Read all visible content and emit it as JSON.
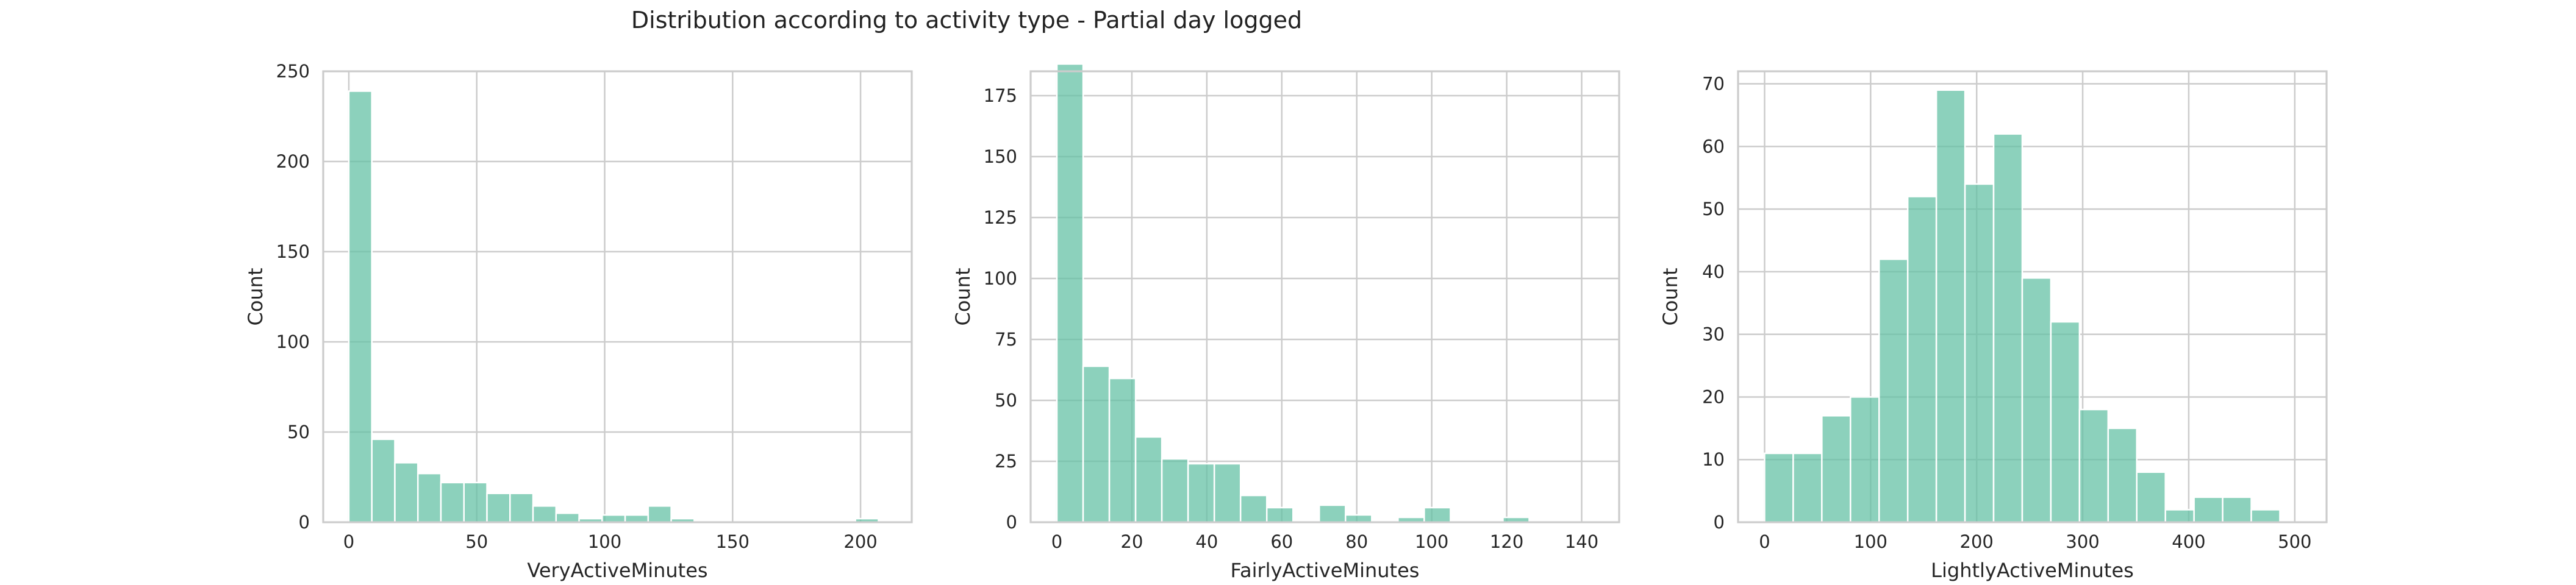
{
  "figure": {
    "title": "Distribution according to activity type - Partial day logged",
    "bar_color": "#66c2a5",
    "bar_opacity": 0.75,
    "grid_color": "#cccccc",
    "background": "#ffffff"
  },
  "chart_data": [
    {
      "type": "bar",
      "kind": "histogram",
      "xlabel": "VeryActiveMinutes",
      "ylabel": "Count",
      "xlim": [
        -10,
        220
      ],
      "ylim": [
        0,
        250
      ],
      "xticks": [
        0,
        50,
        100,
        150,
        200
      ],
      "yticks": [
        0,
        50,
        100,
        150,
        200,
        250
      ],
      "grid": true,
      "bins": [
        {
          "x0": 0,
          "x1": 9,
          "count": 239
        },
        {
          "x0": 9,
          "x1": 18,
          "count": 46
        },
        {
          "x0": 18,
          "x1": 27,
          "count": 33
        },
        {
          "x0": 27,
          "x1": 36,
          "count": 27
        },
        {
          "x0": 36,
          "x1": 45,
          "count": 22
        },
        {
          "x0": 45,
          "x1": 54,
          "count": 22
        },
        {
          "x0": 54,
          "x1": 63,
          "count": 16
        },
        {
          "x0": 63,
          "x1": 72,
          "count": 16
        },
        {
          "x0": 72,
          "x1": 81,
          "count": 9
        },
        {
          "x0": 81,
          "x1": 90,
          "count": 5
        },
        {
          "x0": 90,
          "x1": 99,
          "count": 2
        },
        {
          "x0": 99,
          "x1": 108,
          "count": 4
        },
        {
          "x0": 108,
          "x1": 117,
          "count": 4
        },
        {
          "x0": 117,
          "x1": 126,
          "count": 9
        },
        {
          "x0": 126,
          "x1": 135,
          "count": 2
        },
        {
          "x0": 135,
          "x1": 144,
          "count": 0
        },
        {
          "x0": 144,
          "x1": 153,
          "count": 0
        },
        {
          "x0": 153,
          "x1": 162,
          "count": 0
        },
        {
          "x0": 162,
          "x1": 171,
          "count": 0
        },
        {
          "x0": 171,
          "x1": 180,
          "count": 0
        },
        {
          "x0": 180,
          "x1": 189,
          "count": 0
        },
        {
          "x0": 189,
          "x1": 198,
          "count": 0
        },
        {
          "x0": 198,
          "x1": 207,
          "count": 2
        }
      ]
    },
    {
      "type": "bar",
      "kind": "histogram",
      "xlabel": "FairlyActiveMinutes",
      "ylabel": "Count",
      "xlim": [
        -7,
        150
      ],
      "ylim": [
        0,
        185
      ],
      "xticks": [
        0,
        20,
        40,
        60,
        80,
        100,
        120,
        140
      ],
      "yticks": [
        0,
        25,
        50,
        75,
        100,
        125,
        150,
        175
      ],
      "grid": true,
      "bins": [
        {
          "x0": 0,
          "x1": 7,
          "count": 188
        },
        {
          "x0": 7,
          "x1": 14,
          "count": 64
        },
        {
          "x0": 14,
          "x1": 21,
          "count": 59
        },
        {
          "x0": 21,
          "x1": 28,
          "count": 35
        },
        {
          "x0": 28,
          "x1": 35,
          "count": 26
        },
        {
          "x0": 35,
          "x1": 42,
          "count": 24
        },
        {
          "x0": 42,
          "x1": 49,
          "count": 24
        },
        {
          "x0": 49,
          "x1": 56,
          "count": 11
        },
        {
          "x0": 56,
          "x1": 63,
          "count": 6
        },
        {
          "x0": 63,
          "x1": 70,
          "count": 0
        },
        {
          "x0": 70,
          "x1": 77,
          "count": 7
        },
        {
          "x0": 77,
          "x1": 84,
          "count": 3
        },
        {
          "x0": 84,
          "x1": 91,
          "count": 0
        },
        {
          "x0": 91,
          "x1": 98,
          "count": 2
        },
        {
          "x0": 98,
          "x1": 105,
          "count": 6
        },
        {
          "x0": 105,
          "x1": 112,
          "count": 0
        },
        {
          "x0": 112,
          "x1": 119,
          "count": 0
        },
        {
          "x0": 119,
          "x1": 126,
          "count": 2
        },
        {
          "x0": 126,
          "x1": 133,
          "count": 0
        },
        {
          "x0": 133,
          "x1": 140,
          "count": 0
        }
      ]
    },
    {
      "type": "bar",
      "kind": "histogram",
      "xlabel": "LightlyActiveMinutes",
      "ylabel": "Count",
      "xlim": [
        -25,
        530
      ],
      "ylim": [
        0,
        72
      ],
      "xticks": [
        0,
        100,
        200,
        300,
        400,
        500
      ],
      "yticks": [
        0,
        10,
        20,
        30,
        40,
        50,
        60,
        70
      ],
      "grid": true,
      "bins": [
        {
          "x0": 0,
          "x1": 27,
          "count": 11
        },
        {
          "x0": 27,
          "x1": 54,
          "count": 11
        },
        {
          "x0": 54,
          "x1": 81,
          "count": 17
        },
        {
          "x0": 81,
          "x1": 108,
          "count": 20
        },
        {
          "x0": 108,
          "x1": 135,
          "count": 42
        },
        {
          "x0": 135,
          "x1": 162,
          "count": 52
        },
        {
          "x0": 162,
          "x1": 189,
          "count": 69
        },
        {
          "x0": 189,
          "x1": 216,
          "count": 54
        },
        {
          "x0": 216,
          "x1": 243,
          "count": 62
        },
        {
          "x0": 243,
          "x1": 270,
          "count": 39
        },
        {
          "x0": 270,
          "x1": 297,
          "count": 32
        },
        {
          "x0": 297,
          "x1": 324,
          "count": 18
        },
        {
          "x0": 324,
          "x1": 351,
          "count": 15
        },
        {
          "x0": 351,
          "x1": 378,
          "count": 8
        },
        {
          "x0": 378,
          "x1": 405,
          "count": 2
        },
        {
          "x0": 405,
          "x1": 432,
          "count": 4
        },
        {
          "x0": 432,
          "x1": 459,
          "count": 4
        },
        {
          "x0": 459,
          "x1": 486,
          "count": 2
        }
      ]
    }
  ]
}
